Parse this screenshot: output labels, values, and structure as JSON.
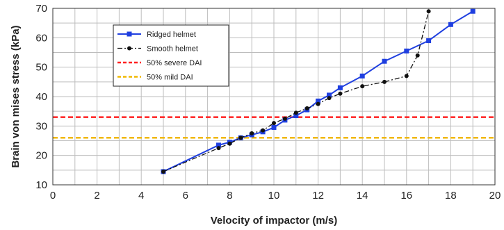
{
  "chart_data": {
    "type": "line",
    "title": "",
    "xlabel": "Velocity of impactor (m/s)",
    "ylabel": "Brain von mises stress (kPa)",
    "xlim": [
      0,
      20
    ],
    "ylim": [
      10,
      70
    ],
    "xticks": [
      0,
      2,
      4,
      6,
      8,
      10,
      12,
      14,
      16,
      18,
      20
    ],
    "yticks": [
      10,
      20,
      30,
      40,
      50,
      60,
      70
    ],
    "grid": true,
    "legend_position": "top-left",
    "series": [
      {
        "name": "Ridged helmet",
        "color": "#1f3fe0",
        "marker": "square",
        "line_style": "solid",
        "x": [
          5,
          7.5,
          8,
          8.5,
          9,
          9.5,
          10,
          10.5,
          11,
          11.5,
          12,
          12.5,
          13,
          14,
          15,
          16,
          17,
          18,
          19
        ],
        "y": [
          14.5,
          23.5,
          24.5,
          26,
          27,
          28,
          29.5,
          32,
          33.5,
          35.5,
          38.5,
          40.5,
          43,
          47,
          52,
          55.5,
          59,
          64.5,
          69
        ]
      },
      {
        "name": "Smooth helmet",
        "color": "#111111",
        "marker": "circle",
        "line_style": "dashdot",
        "x": [
          5,
          7.5,
          8,
          8.5,
          9,
          9.5,
          10,
          10.5,
          11,
          11.5,
          12,
          12.5,
          13,
          14,
          15,
          16,
          16.5,
          17
        ],
        "y": [
          14.5,
          22.5,
          24,
          26,
          27.5,
          28.5,
          31,
          32.5,
          34.5,
          36,
          37.5,
          39.5,
          41,
          43.5,
          45,
          47,
          54,
          69
        ]
      }
    ],
    "reference_lines": [
      {
        "name": "50% severe DAI",
        "y": 33,
        "color": "#ff2020",
        "line_style": "dashed"
      },
      {
        "name": "50% mild DAI",
        "y": 26,
        "color": "#f0b800",
        "line_style": "dashed"
      }
    ]
  }
}
